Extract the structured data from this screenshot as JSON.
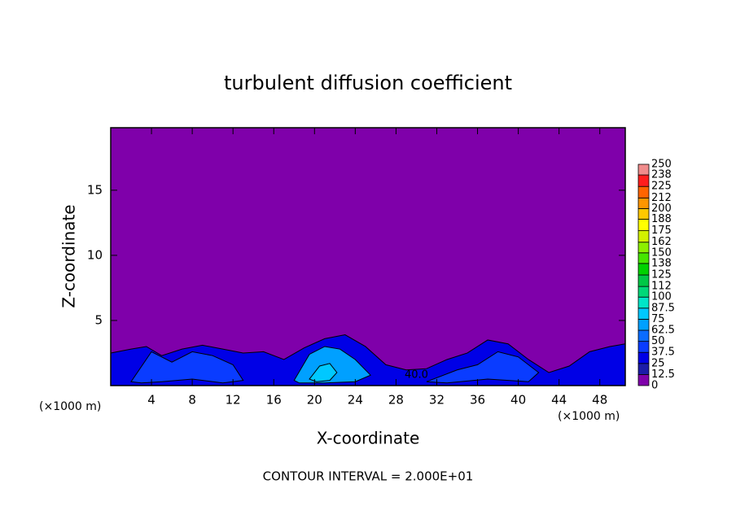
{
  "chart_data": {
    "type": "contour",
    "title": "turbulent diffusion coefficient",
    "xlabel": "X-coordinate",
    "ylabel": "Z-coordinate",
    "x_unit": "(×1000 m)",
    "y_unit": "(×1000 m)",
    "footer": "CONTOUR INTERVAL = 2.000E+01",
    "xlim": [
      0,
      50.5
    ],
    "ylim": [
      0,
      19.8
    ],
    "xticks": [
      4,
      8,
      12,
      16,
      20,
      24,
      28,
      32,
      36,
      40,
      44,
      48
    ],
    "yticks": [
      5,
      10,
      15
    ],
    "background_level": 0,
    "colorbar": {
      "levels": [
        0,
        12.5,
        25,
        37.5,
        50,
        62.5,
        75,
        87.5,
        100,
        112,
        125,
        138,
        150,
        162,
        175,
        188,
        200,
        212,
        225,
        238,
        250
      ],
      "colors": [
        "#7f00aa",
        "#1c1ca8",
        "#0000e6",
        "#0a3cff",
        "#0a6cff",
        "#00a0ff",
        "#00c8ff",
        "#00e6c8",
        "#00d878",
        "#00c846",
        "#00d200",
        "#46e600",
        "#8cf000",
        "#d2f000",
        "#ffff00",
        "#ffc800",
        "#ff9600",
        "#ff6400",
        "#ff1e1e",
        "#f08c8c"
      ]
    },
    "regions": [
      {
        "level": 25,
        "x": [
          0,
          2,
          3.5,
          5,
          7,
          9,
          11,
          13,
          15,
          17,
          19,
          21,
          23,
          25,
          27,
          29,
          31,
          33,
          35,
          37,
          39,
          41,
          43,
          45,
          47,
          49,
          50.5,
          50.5,
          0
        ],
        "z": [
          2.5,
          2.8,
          3,
          2.3,
          2.8,
          3.1,
          2.8,
          2.5,
          2.6,
          2.0,
          2.9,
          3.6,
          3.9,
          3.0,
          1.6,
          1.2,
          1.3,
          2.0,
          2.5,
          3.5,
          3.2,
          2.0,
          1.0,
          1.5,
          2.6,
          3.0,
          3.2,
          0,
          0
        ]
      },
      {
        "level": 37.5,
        "x": [
          2,
          4,
          6,
          8,
          10,
          12,
          13,
          11,
          8,
          5,
          3
        ],
        "z": [
          0.3,
          2.6,
          1.8,
          2.6,
          2.3,
          1.6,
          0.4,
          0.2,
          0.5,
          0.3,
          0.2
        ]
      },
      {
        "level": 37.5,
        "x": [
          31,
          34,
          36,
          38,
          40,
          42,
          41,
          37,
          33
        ],
        "z": [
          0.3,
          1.2,
          1.6,
          2.6,
          2.2,
          1.0,
          0.3,
          0.5,
          0.2
        ]
      },
      {
        "level": 62.5,
        "x": [
          18,
          19.5,
          21,
          22.5,
          24,
          25.5,
          24,
          21,
          18.5
        ],
        "z": [
          0.4,
          2.4,
          3.0,
          2.8,
          2.0,
          0.8,
          0.3,
          0.2,
          0.2
        ]
      },
      {
        "level": 75,
        "x": [
          19.5,
          20.5,
          21.5,
          22.2,
          21.5,
          20.2
        ],
        "z": [
          0.5,
          1.5,
          1.7,
          1.0,
          0.4,
          0.3
        ]
      }
    ],
    "annotations": [
      {
        "text": "40.0",
        "x": 30,
        "y": 0.8
      }
    ]
  }
}
